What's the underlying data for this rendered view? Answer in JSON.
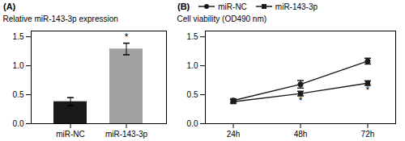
{
  "chart_data": [
    {
      "type": "bar",
      "title": "(A)",
      "categories": [
        "miR-NC",
        "miR-143-3p"
      ],
      "values": [
        0.38,
        1.29
      ],
      "errors": [
        0.07,
        0.1
      ],
      "colors": [
        "#1a1a1a",
        "#a0a0a0"
      ],
      "ylabel": "Relative miR-143-3p expression",
      "ylim": [
        0,
        1.6
      ],
      "yticks": [
        {
          "value": 0,
          "label": "0.0"
        },
        0.5,
        {
          "value": 1,
          "label": "1.0"
        },
        1.5
      ],
      "annotations": [
        {
          "x": "miR-143-3p",
          "y": 1.44,
          "text": "*"
        }
      ]
    },
    {
      "type": "line",
      "title": "(B)",
      "x": [
        24,
        48,
        72
      ],
      "xlim": [
        14,
        82
      ],
      "xticks": [
        {
          "value": 24,
          "label": "24h"
        },
        {
          "value": 48,
          "label": "48h"
        },
        {
          "value": 72,
          "label": "72h"
        }
      ],
      "series": [
        {
          "name": "miR-NC",
          "color": "#1a1a1a",
          "marker": "circle",
          "values": [
            0.4,
            0.68,
            1.08
          ],
          "errors": [
            0.03,
            0.065,
            0.05
          ]
        },
        {
          "name": "miR-143-3p",
          "color": "#1a1a1a",
          "marker": "square",
          "values": [
            0.38,
            0.52,
            0.7
          ],
          "errors": [
            0.03,
            0.04,
            0.04
          ]
        }
      ],
      "ylabel": "Cell viability (OD490 nm)",
      "ylim": [
        0,
        1.6
      ],
      "yticks": [
        {
          "value": 0,
          "label": "0.0"
        },
        0.5,
        {
          "value": 1,
          "label": "1.0"
        },
        1.5
      ],
      "legend": "upper left",
      "annotations": [
        {
          "x": 48,
          "y": 0.455,
          "text": "*"
        },
        {
          "x": 72,
          "y": 0.635,
          "text": "*"
        }
      ]
    }
  ]
}
